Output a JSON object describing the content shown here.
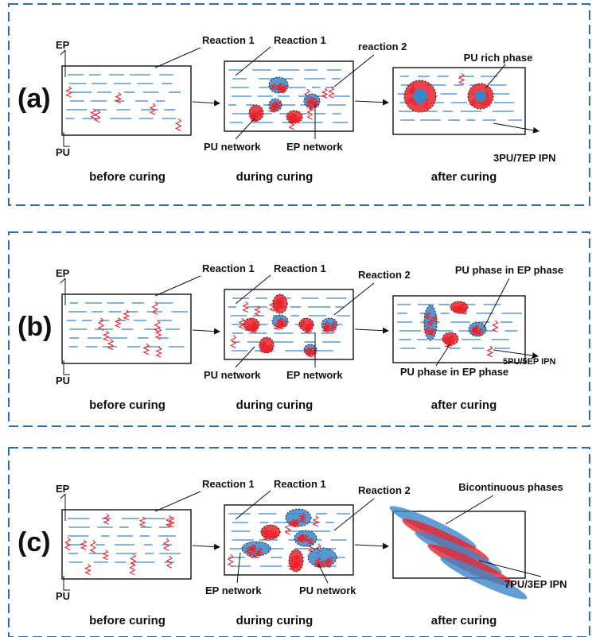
{
  "colors": {
    "panel_border": "#2f6fa6",
    "ep_chain": "#3a86c8",
    "pu_chain": "#e8222a",
    "box_stroke": "#111111",
    "ep_phase_fill": "#3a86c8",
    "pu_phase_fill": "#e8222a"
  },
  "panels": [
    {
      "letter": "(a)",
      "axis_top": "EP",
      "axis_bottom": "PU",
      "stage1": "before curing",
      "stage2": "during  curing",
      "stage3": "after  curing",
      "arrow_label_1": "Reaction 1",
      "arrow_label_2": "Reaction 1",
      "arrow_label_3": "reaction 2",
      "network_label_1": "PU network",
      "network_label_2": "EP network",
      "phase_label": "PU rich phase",
      "ipn_label": "3PU/7EP IPN"
    },
    {
      "letter": "(b)",
      "axis_top": "EP",
      "axis_bottom": "PU",
      "stage1": "before curing",
      "stage2": "during  curing",
      "stage3": "after  curing",
      "arrow_label_1": "Reaction 1",
      "arrow_label_2": "Reaction 1",
      "arrow_label_3": "Reaction 2",
      "network_label_1": "PU network",
      "network_label_2": "EP network",
      "phase_label": "PU phase in EP phase",
      "phase_label_2": "PU phase in EP phase",
      "ipn_label": "5PU/5EP IPN"
    },
    {
      "letter": "(c)",
      "axis_top": "EP",
      "axis_bottom": "PU",
      "stage1": "before curing",
      "stage2": "during  curing",
      "stage3": "after  curing",
      "arrow_label_1": "Reaction 1",
      "arrow_label_2": "Reaction 1",
      "arrow_label_3": "Reaction 2",
      "network_label_1": "EP network",
      "network_label_2": "PU network",
      "phase_label": "Bicontinuous phases",
      "ipn_label": "7PU/3EP IPN"
    }
  ]
}
